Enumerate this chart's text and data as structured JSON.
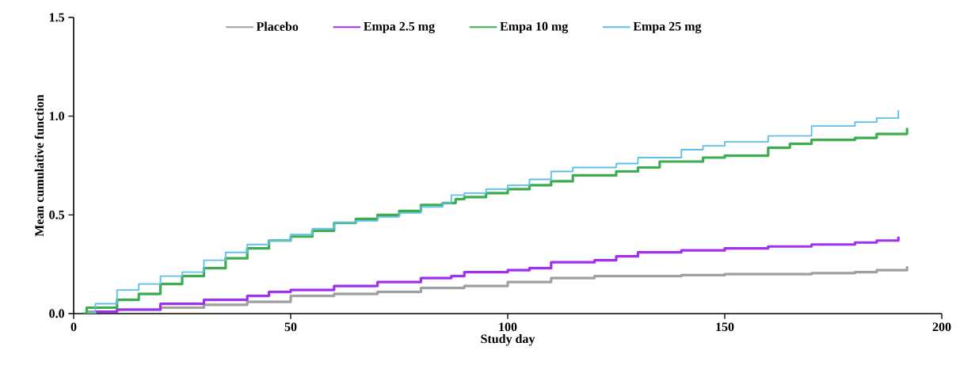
{
  "chart_data": {
    "type": "step",
    "xlabel": "Study day",
    "ylabel": "Mean cumulative function",
    "xlim": [
      0,
      200
    ],
    "ylim": [
      0,
      1.5
    ],
    "xticks": [
      0,
      50,
      100,
      150,
      200
    ],
    "yticks": [
      {
        "value": 0,
        "label": "0.0"
      },
      {
        "value": 0.5,
        "label": "0.5"
      },
      {
        "value": 1,
        "label": "1.0"
      },
      {
        "value": 1.5,
        "label": "1.5"
      }
    ],
    "grid": false,
    "legend": "top",
    "line_style": "solid",
    "marker": "none",
    "series": [
      {
        "name": "Placebo",
        "color": "#a0a0a0",
        "x": [
          3,
          10,
          20,
          30,
          40,
          50,
          60,
          70,
          80,
          90,
          100,
          110,
          120,
          130,
          140,
          150,
          160,
          170,
          180,
          185,
          192
        ],
        "values": [
          0.01,
          0.02,
          0.03,
          0.045,
          0.06,
          0.09,
          0.1,
          0.11,
          0.13,
          0.14,
          0.16,
          0.18,
          0.19,
          0.19,
          0.195,
          0.2,
          0.2,
          0.205,
          0.21,
          0.22,
          0.24
        ]
      },
      {
        "name": "Empa 2.5 mg",
        "color": "#a030f0",
        "x": [
          5,
          10,
          20,
          30,
          40,
          45,
          50,
          60,
          70,
          80,
          87,
          90,
          100,
          105,
          110,
          120,
          125,
          130,
          140,
          150,
          160,
          170,
          180,
          185,
          190
        ],
        "values": [
          0.01,
          0.02,
          0.05,
          0.07,
          0.09,
          0.11,
          0.12,
          0.14,
          0.16,
          0.18,
          0.19,
          0.21,
          0.22,
          0.23,
          0.26,
          0.27,
          0.29,
          0.31,
          0.32,
          0.33,
          0.34,
          0.35,
          0.36,
          0.37,
          0.39
        ]
      },
      {
        "name": "Empa 10 mg",
        "color": "#3cae50",
        "x": [
          2,
          3,
          10,
          15,
          20,
          25,
          30,
          35,
          40,
          45,
          50,
          55,
          60,
          65,
          70,
          75,
          80,
          85,
          88,
          90,
          95,
          100,
          105,
          110,
          115,
          125,
          130,
          135,
          145,
          150,
          160,
          165,
          170,
          180,
          185,
          192
        ],
        "values": [
          0,
          0.03,
          0.07,
          0.1,
          0.15,
          0.19,
          0.23,
          0.28,
          0.33,
          0.37,
          0.39,
          0.42,
          0.46,
          0.48,
          0.5,
          0.52,
          0.55,
          0.56,
          0.58,
          0.59,
          0.61,
          0.63,
          0.65,
          0.67,
          0.7,
          0.72,
          0.74,
          0.77,
          0.79,
          0.8,
          0.84,
          0.86,
          0.88,
          0.89,
          0.91,
          0.94
        ]
      },
      {
        "name": "Empa 25 mg",
        "color": "#5ec0ea",
        "x": [
          3,
          5,
          10,
          15,
          20,
          25,
          30,
          35,
          40,
          45,
          50,
          55,
          60,
          65,
          70,
          75,
          80,
          85,
          87,
          90,
          95,
          100,
          105,
          110,
          115,
          120,
          125,
          130,
          140,
          145,
          150,
          160,
          170,
          180,
          185,
          190
        ],
        "values": [
          0,
          0.05,
          0.12,
          0.15,
          0.19,
          0.21,
          0.27,
          0.31,
          0.35,
          0.37,
          0.4,
          0.43,
          0.46,
          0.47,
          0.49,
          0.51,
          0.54,
          0.56,
          0.6,
          0.61,
          0.63,
          0.65,
          0.68,
          0.72,
          0.74,
          0.74,
          0.76,
          0.79,
          0.83,
          0.85,
          0.87,
          0.9,
          0.95,
          0.97,
          0.99,
          1.03
        ]
      }
    ]
  }
}
